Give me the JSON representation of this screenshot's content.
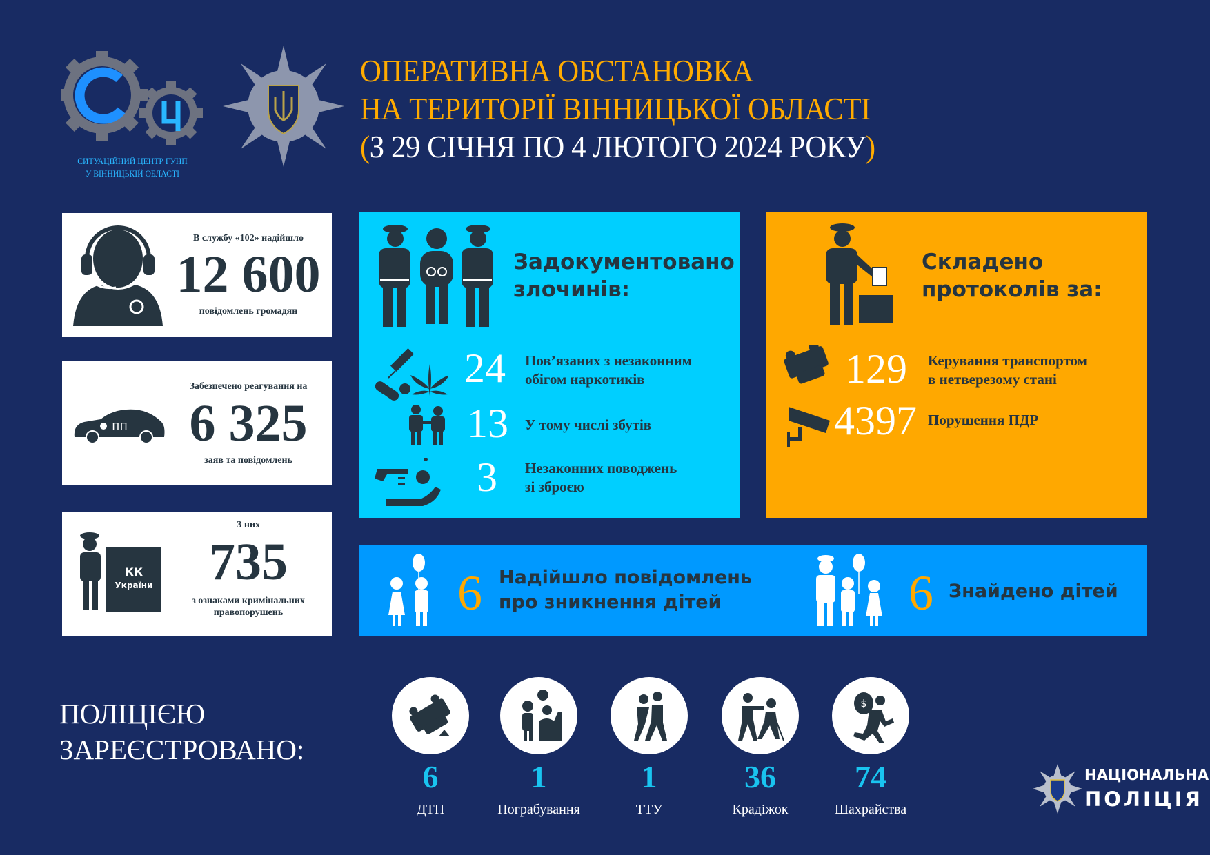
{
  "colors": {
    "background": "#182b63",
    "accent_gold": "#ffab00",
    "crimes_box": "#00cfff",
    "protocols_box": "#ffa800",
    "children_strip": "#0099ff",
    "dark_text": "#263540",
    "registered_number": "#19c4f0"
  },
  "header": {
    "logo_caption": [
      "СИТУАЦІЙНИЙ ЦЕНТР ГУНП",
      "У ВІННИЦЬКІЙ ОБЛАСТІ"
    ],
    "title_lines": [
      "ОПЕРАТИВНА ОБСТАНОВКА",
      "НА ТЕРИТОРІЇ ВІННИЦЬКОЇ ОБЛАСТІ"
    ],
    "period_open": "(",
    "period": "З 29 СІЧНЯ ПО 4 ЛЮТОГО 2024 РОКУ",
    "period_close": ")"
  },
  "cards": [
    {
      "top": "В службу «102» надійшло",
      "value": "12 600",
      "bottom": "повідомлень громадян",
      "icon": "operator-headset-icon"
    },
    {
      "top": "Забезпечено реагування на",
      "value": "6 325",
      "bottom": "заяв та повідомлень",
      "icon": "police-car-icon",
      "car_text": "ПП"
    },
    {
      "top": "З них",
      "value": "735",
      "bottom": [
        "з ознаками кримінальних",
        "правопорушень"
      ],
      "icon": "police-criminal-code-icon",
      "book_text": [
        "КК",
        "України"
      ]
    }
  ],
  "crimes": {
    "title": [
      "Задокументовано",
      "злочинів:"
    ],
    "rows": [
      {
        "value": "24",
        "label": [
          "Пов’язаних з незаконним",
          "обігом наркотиків"
        ],
        "icon": "drugs-icon"
      },
      {
        "value": "13",
        "label": [
          "У тому числі збутів"
        ],
        "icon": "drug-dealing-icon"
      },
      {
        "value": "3",
        "label": [
          "Незаконних поводжень",
          "зі зброєю"
        ],
        "icon": "weapons-icon"
      }
    ]
  },
  "protocols": {
    "title": [
      "Складено",
      "протоколів за:"
    ],
    "rows": [
      {
        "value": "129",
        "label": [
          "Керування транспортом",
          "в нетверезому стані"
        ],
        "icon": "overturned-car-icon"
      },
      {
        "value": "4397",
        "label": [
          "Порушення ПДР"
        ],
        "icon": "traffic-camera-icon"
      }
    ]
  },
  "children": {
    "missing": {
      "value": "6",
      "label": [
        "Надійшло повідомлень",
        "про зникнення дітей"
      ]
    },
    "found": {
      "value": "6",
      "label": "Знайдено дітей"
    }
  },
  "registered": {
    "title": [
      "ПОЛІЦІЄЮ",
      "ЗАРЕЄСТРОВАНО:"
    ],
    "items": [
      {
        "value": "6",
        "label": "ДТП",
        "icon": "car-crash-icon"
      },
      {
        "value": "1",
        "label": "Пограбування",
        "icon": "robbery-icon"
      },
      {
        "value": "1",
        "label": "ТТУ",
        "icon": "assault-icon"
      },
      {
        "value": "36",
        "label": "Крадіжок",
        "icon": "theft-icon"
      },
      {
        "value": "74",
        "label": "Шахрайства",
        "icon": "fraud-icon"
      }
    ]
  },
  "footer_logo": [
    "НАЦІОНАЛЬНА",
    "ПОЛІЦІЯ"
  ]
}
